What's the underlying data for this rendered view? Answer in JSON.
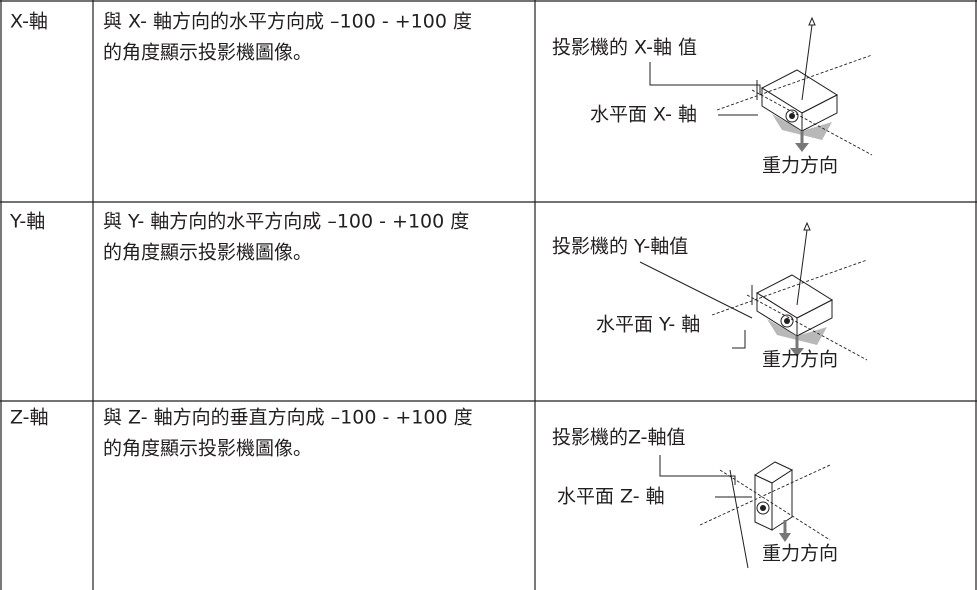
{
  "rows": [
    {
      "axis": "X-軸",
      "description": [
        "與 X- 軸方向的水平方向成 –100 - +100 度",
        "的角度顯示投影機圖像。"
      ],
      "diagram": {
        "projector_axis": "投影機的 X-軸 值",
        "horizontal_axis": "水平面 X- 軸",
        "gravity": "重力方向"
      }
    },
    {
      "axis": "Y-軸",
      "description": [
        "與 Y- 軸方向的水平方向成 –100 - +100 度",
        "的角度顯示投影機圖像。"
      ],
      "diagram": {
        "projector_axis": "投影機的 Y-軸值",
        "horizontal_axis": "水平面 Y- 軸",
        "gravity": "重力方向"
      }
    },
    {
      "axis": "Z-軸",
      "description": [
        "與 Z- 軸方向的垂直方向成 –100 - +100 度",
        "的角度顯示投影機圖像。"
      ],
      "diagram": {
        "projector_axis": "投影機的Z-軸值",
        "horizontal_axis": "水平面 Z- 軸",
        "gravity": "重力方向"
      }
    }
  ]
}
